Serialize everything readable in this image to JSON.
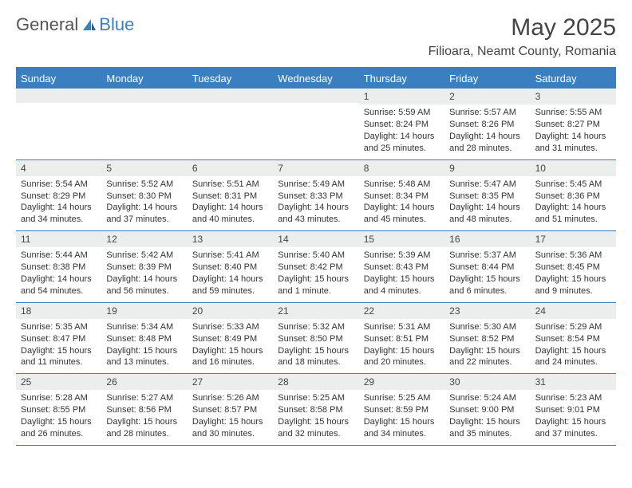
{
  "brand": {
    "part1": "General",
    "part2": "Blue"
  },
  "title": "May 2025",
  "location": "Filioara, Neamt County, Romania",
  "colors": {
    "accent": "#3a7fbf",
    "header_bg": "#3a7fbf",
    "header_text": "#ffffff",
    "daynum_bg": "#eceded",
    "text": "#333333",
    "background": "#ffffff"
  },
  "day_names": [
    "Sunday",
    "Monday",
    "Tuesday",
    "Wednesday",
    "Thursday",
    "Friday",
    "Saturday"
  ],
  "weeks": [
    [
      null,
      null,
      null,
      null,
      {
        "n": "1",
        "sr": "5:59 AM",
        "ss": "8:24 PM",
        "dl": "14 hours and 25 minutes."
      },
      {
        "n": "2",
        "sr": "5:57 AM",
        "ss": "8:26 PM",
        "dl": "14 hours and 28 minutes."
      },
      {
        "n": "3",
        "sr": "5:55 AM",
        "ss": "8:27 PM",
        "dl": "14 hours and 31 minutes."
      }
    ],
    [
      {
        "n": "4",
        "sr": "5:54 AM",
        "ss": "8:29 PM",
        "dl": "14 hours and 34 minutes."
      },
      {
        "n": "5",
        "sr": "5:52 AM",
        "ss": "8:30 PM",
        "dl": "14 hours and 37 minutes."
      },
      {
        "n": "6",
        "sr": "5:51 AM",
        "ss": "8:31 PM",
        "dl": "14 hours and 40 minutes."
      },
      {
        "n": "7",
        "sr": "5:49 AM",
        "ss": "8:33 PM",
        "dl": "14 hours and 43 minutes."
      },
      {
        "n": "8",
        "sr": "5:48 AM",
        "ss": "8:34 PM",
        "dl": "14 hours and 45 minutes."
      },
      {
        "n": "9",
        "sr": "5:47 AM",
        "ss": "8:35 PM",
        "dl": "14 hours and 48 minutes."
      },
      {
        "n": "10",
        "sr": "5:45 AM",
        "ss": "8:36 PM",
        "dl": "14 hours and 51 minutes."
      }
    ],
    [
      {
        "n": "11",
        "sr": "5:44 AM",
        "ss": "8:38 PM",
        "dl": "14 hours and 54 minutes."
      },
      {
        "n": "12",
        "sr": "5:42 AM",
        "ss": "8:39 PM",
        "dl": "14 hours and 56 minutes."
      },
      {
        "n": "13",
        "sr": "5:41 AM",
        "ss": "8:40 PM",
        "dl": "14 hours and 59 minutes."
      },
      {
        "n": "14",
        "sr": "5:40 AM",
        "ss": "8:42 PM",
        "dl": "15 hours and 1 minute."
      },
      {
        "n": "15",
        "sr": "5:39 AM",
        "ss": "8:43 PM",
        "dl": "15 hours and 4 minutes."
      },
      {
        "n": "16",
        "sr": "5:37 AM",
        "ss": "8:44 PM",
        "dl": "15 hours and 6 minutes."
      },
      {
        "n": "17",
        "sr": "5:36 AM",
        "ss": "8:45 PM",
        "dl": "15 hours and 9 minutes."
      }
    ],
    [
      {
        "n": "18",
        "sr": "5:35 AM",
        "ss": "8:47 PM",
        "dl": "15 hours and 11 minutes."
      },
      {
        "n": "19",
        "sr": "5:34 AM",
        "ss": "8:48 PM",
        "dl": "15 hours and 13 minutes."
      },
      {
        "n": "20",
        "sr": "5:33 AM",
        "ss": "8:49 PM",
        "dl": "15 hours and 16 minutes."
      },
      {
        "n": "21",
        "sr": "5:32 AM",
        "ss": "8:50 PM",
        "dl": "15 hours and 18 minutes."
      },
      {
        "n": "22",
        "sr": "5:31 AM",
        "ss": "8:51 PM",
        "dl": "15 hours and 20 minutes."
      },
      {
        "n": "23",
        "sr": "5:30 AM",
        "ss": "8:52 PM",
        "dl": "15 hours and 22 minutes."
      },
      {
        "n": "24",
        "sr": "5:29 AM",
        "ss": "8:54 PM",
        "dl": "15 hours and 24 minutes."
      }
    ],
    [
      {
        "n": "25",
        "sr": "5:28 AM",
        "ss": "8:55 PM",
        "dl": "15 hours and 26 minutes."
      },
      {
        "n": "26",
        "sr": "5:27 AM",
        "ss": "8:56 PM",
        "dl": "15 hours and 28 minutes."
      },
      {
        "n": "27",
        "sr": "5:26 AM",
        "ss": "8:57 PM",
        "dl": "15 hours and 30 minutes."
      },
      {
        "n": "28",
        "sr": "5:25 AM",
        "ss": "8:58 PM",
        "dl": "15 hours and 32 minutes."
      },
      {
        "n": "29",
        "sr": "5:25 AM",
        "ss": "8:59 PM",
        "dl": "15 hours and 34 minutes."
      },
      {
        "n": "30",
        "sr": "5:24 AM",
        "ss": "9:00 PM",
        "dl": "15 hours and 35 minutes."
      },
      {
        "n": "31",
        "sr": "5:23 AM",
        "ss": "9:01 PM",
        "dl": "15 hours and 37 minutes."
      }
    ]
  ],
  "labels": {
    "sunrise": "Sunrise: ",
    "sunset": "Sunset: ",
    "daylight": "Daylight: "
  }
}
